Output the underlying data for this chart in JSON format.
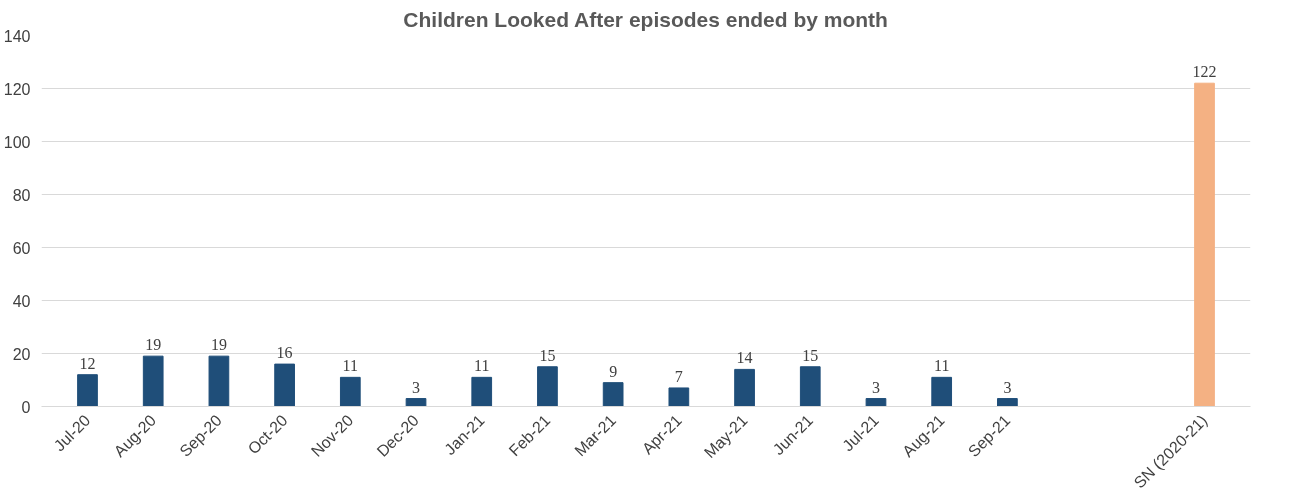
{
  "chart_data": {
    "type": "bar",
    "title": "Children Looked After episodes ended by month",
    "categories": [
      "Jul-20",
      "Aug-20",
      "Sep-20",
      "Oct-20",
      "Nov-20",
      "Dec-20",
      "Jan-21",
      "Feb-21",
      "Mar-21",
      "Apr-21",
      "May-21",
      "Jun-21",
      "Jul-21",
      "Aug-21",
      "Sep-21",
      null,
      null,
      "SN (2020-21)"
    ],
    "values": [
      12,
      19,
      19,
      16,
      11,
      3,
      11,
      15,
      9,
      7,
      14,
      15,
      3,
      11,
      3,
      null,
      null,
      122
    ],
    "colors": [
      "#1f4e79",
      "#1f4e79",
      "#1f4e79",
      "#1f4e79",
      "#1f4e79",
      "#1f4e79",
      "#1f4e79",
      "#1f4e79",
      "#1f4e79",
      "#1f4e79",
      "#1f4e79",
      "#1f4e79",
      "#1f4e79",
      "#1f4e79",
      "#1f4e79",
      null,
      null,
      "#f4b183"
    ],
    "ylim": [
      0,
      140
    ],
    "yticks": [
      0,
      20,
      40,
      60,
      80,
      100,
      120,
      140
    ],
    "grid": "y",
    "data_labels": true
  }
}
